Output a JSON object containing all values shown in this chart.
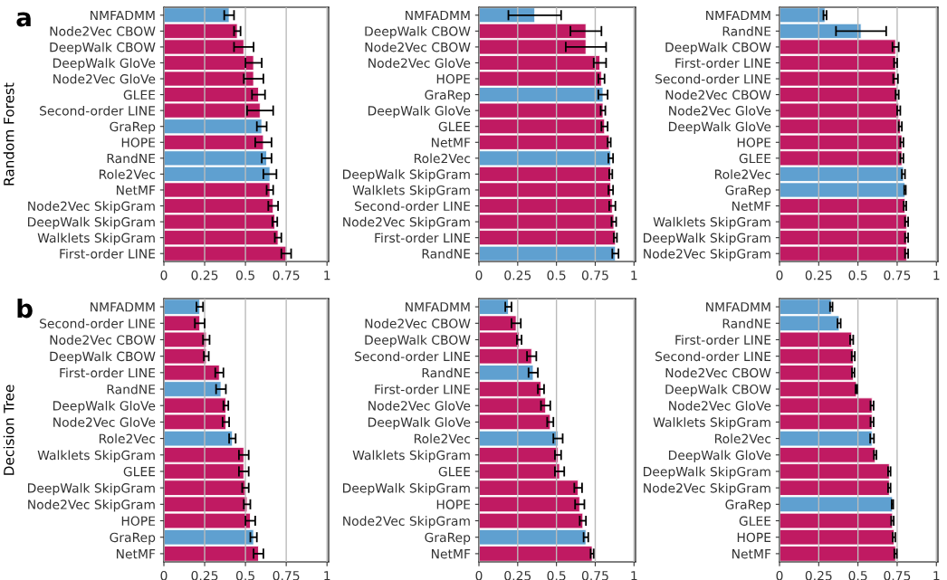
{
  "chart_data": [
    {
      "type": "bar",
      "orientation": "horizontal",
      "ylabel": "Random Forest",
      "annotations": [
        "a"
      ],
      "grid": "x",
      "xlim": [
        0,
        1.01
      ],
      "xticks": [
        0,
        0.25,
        0.5,
        0.75,
        1
      ],
      "categories": [
        "NMFADMM",
        "Node2Vec CBOW",
        "DeepWalk CBOW",
        "DeepWalk GloVe",
        "Node2Vec GloVe",
        "GLEE",
        "Second-order LINE",
        "GraRep",
        "HOPE",
        "RandNE",
        "Role2Vec",
        "NetMF",
        "Node2Vec SkipGram",
        "DeepWalk SkipGram",
        "Walklets SkipGram",
        "First-order LINE"
      ],
      "values": [
        0.4,
        0.45,
        0.49,
        0.55,
        0.55,
        0.58,
        0.59,
        0.6,
        0.61,
        0.63,
        0.65,
        0.65,
        0.67,
        0.68,
        0.7,
        0.75
      ],
      "errors": [
        0.03,
        0.02,
        0.06,
        0.05,
        0.06,
        0.04,
        0.08,
        0.03,
        0.05,
        0.03,
        0.04,
        0.02,
        0.03,
        0.015,
        0.02,
        0.03
      ],
      "colors": [
        "#5fa0d0",
        "#c01a62",
        "#c01a62",
        "#c01a62",
        "#c01a62",
        "#c01a62",
        "#c01a62",
        "#5fa0d0",
        "#c01a62",
        "#5fa0d0",
        "#5fa0d0",
        "#c01a62",
        "#c01a62",
        "#c01a62",
        "#c01a62",
        "#c01a62"
      ]
    },
    {
      "type": "bar",
      "orientation": "horizontal",
      "grid": "x",
      "xlim": [
        0,
        1.01
      ],
      "xticks": [
        0,
        0.25,
        0.5,
        0.75,
        1
      ],
      "categories": [
        "NMFADMM",
        "DeepWalk CBOW",
        "Node2Vec CBOW",
        "Node2Vec GloVe",
        "HOPE",
        "GraRep",
        "DeepWalk GloVe",
        "GLEE",
        "NetMF",
        "Role2Vec",
        "DeepWalk SkipGram",
        "Walklets SkipGram",
        "Second-order LINE",
        "Node2Vec SkipGram",
        "First-order LINE",
        "RandNE"
      ],
      "values": [
        0.36,
        0.69,
        0.69,
        0.78,
        0.79,
        0.8,
        0.8,
        0.81,
        0.84,
        0.85,
        0.85,
        0.85,
        0.86,
        0.87,
        0.88,
        0.88
      ],
      "errors": [
        0.17,
        0.1,
        0.13,
        0.04,
        0.02,
        0.03,
        0.015,
        0.02,
        0.01,
        0.015,
        0.01,
        0.015,
        0.02,
        0.015,
        0.01,
        0.02
      ],
      "colors": [
        "#5fa0d0",
        "#c01a62",
        "#c01a62",
        "#c01a62",
        "#c01a62",
        "#5fa0d0",
        "#c01a62",
        "#c01a62",
        "#c01a62",
        "#5fa0d0",
        "#c01a62",
        "#c01a62",
        "#c01a62",
        "#c01a62",
        "#c01a62",
        "#5fa0d0"
      ]
    },
    {
      "type": "bar",
      "orientation": "horizontal",
      "grid": "x",
      "xlim": [
        0,
        1.01
      ],
      "xticks": [
        0,
        0.25,
        0.5,
        0.75,
        1
      ],
      "categories": [
        "NMFADMM",
        "RandNE",
        "DeepWalk CBOW",
        "First-order LINE",
        "Second-order LINE",
        "Node2Vec CBOW",
        "Node2Vec GloVe",
        "DeepWalk GloVe",
        "HOPE",
        "GLEE",
        "Role2Vec",
        "GraRep",
        "NetMF",
        "Walklets SkipGram",
        "DeepWalk SkipGram",
        "Node2Vec SkipGram"
      ],
      "values": [
        0.29,
        0.52,
        0.74,
        0.74,
        0.74,
        0.75,
        0.76,
        0.77,
        0.78,
        0.78,
        0.79,
        0.8,
        0.8,
        0.81,
        0.81,
        0.81
      ],
      "errors": [
        0.01,
        0.16,
        0.02,
        0.01,
        0.015,
        0.01,
        0.01,
        0.01,
        0.01,
        0.01,
        0.01,
        0.005,
        0.008,
        0.01,
        0.01,
        0.01
      ],
      "colors": [
        "#5fa0d0",
        "#5fa0d0",
        "#c01a62",
        "#c01a62",
        "#c01a62",
        "#c01a62",
        "#c01a62",
        "#c01a62",
        "#c01a62",
        "#c01a62",
        "#5fa0d0",
        "#5fa0d0",
        "#c01a62",
        "#c01a62",
        "#c01a62",
        "#c01a62"
      ]
    },
    {
      "type": "bar",
      "orientation": "horizontal",
      "ylabel": "Decision Tree",
      "annotations": [
        "b"
      ],
      "grid": "x",
      "xlim": [
        0,
        1.01
      ],
      "xticks": [
        0,
        0.25,
        0.5,
        0.75,
        1
      ],
      "categories": [
        "NMFADMM",
        "Second-order LINE",
        "Node2Vec CBOW",
        "DeepWalk CBOW",
        "First-order LINE",
        "RandNE",
        "DeepWalk GloVe",
        "Node2Vec GloVe",
        "Role2Vec",
        "Walklets SkipGram",
        "GLEE",
        "DeepWalk SkipGram",
        "Node2Vec SkipGram",
        "HOPE",
        "GraRep",
        "NetMF"
      ],
      "values": [
        0.22,
        0.22,
        0.26,
        0.26,
        0.34,
        0.35,
        0.38,
        0.38,
        0.42,
        0.49,
        0.49,
        0.5,
        0.51,
        0.53,
        0.55,
        0.58
      ],
      "errors": [
        0.02,
        0.03,
        0.02,
        0.015,
        0.025,
        0.03,
        0.015,
        0.02,
        0.02,
        0.03,
        0.03,
        0.02,
        0.02,
        0.03,
        0.02,
        0.03
      ],
      "colors": [
        "#5fa0d0",
        "#c01a62",
        "#c01a62",
        "#c01a62",
        "#c01a62",
        "#5fa0d0",
        "#c01a62",
        "#c01a62",
        "#5fa0d0",
        "#c01a62",
        "#c01a62",
        "#c01a62",
        "#c01a62",
        "#c01a62",
        "#5fa0d0",
        "#c01a62"
      ]
    },
    {
      "type": "bar",
      "orientation": "horizontal",
      "grid": "x",
      "xlim": [
        0,
        1.01
      ],
      "xticks": [
        0,
        0.25,
        0.5,
        0.75,
        1
      ],
      "categories": [
        "NMFADMM",
        "Node2Vec CBOW",
        "DeepWalk CBOW",
        "Second-order LINE",
        "RandNE",
        "First-order LINE",
        "Node2Vec GloVe",
        "DeepWalk GloVe",
        "Role2Vec",
        "Walklets SkipGram",
        "GLEE",
        "DeepWalk SkipGram",
        "HOPE",
        "Node2Vec SkipGram",
        "GraRep",
        "NetMF"
      ],
      "values": [
        0.19,
        0.24,
        0.26,
        0.34,
        0.35,
        0.4,
        0.43,
        0.46,
        0.51,
        0.51,
        0.52,
        0.64,
        0.65,
        0.67,
        0.69,
        0.73
      ],
      "errors": [
        0.02,
        0.03,
        0.015,
        0.03,
        0.03,
        0.02,
        0.03,
        0.02,
        0.03,
        0.02,
        0.03,
        0.025,
        0.03,
        0.02,
        0.015,
        0.01
      ],
      "colors": [
        "#5fa0d0",
        "#c01a62",
        "#c01a62",
        "#c01a62",
        "#5fa0d0",
        "#c01a62",
        "#c01a62",
        "#c01a62",
        "#5fa0d0",
        "#c01a62",
        "#c01a62",
        "#c01a62",
        "#c01a62",
        "#c01a62",
        "#5fa0d0",
        "#c01a62"
      ]
    },
    {
      "type": "bar",
      "orientation": "horizontal",
      "grid": "x",
      "xlim": [
        0,
        1.01
      ],
      "xticks": [
        0,
        0.25,
        0.5,
        0.75,
        1
      ],
      "categories": [
        "NMFADMM",
        "RandNE",
        "First-order LINE",
        "Second-order LINE",
        "Node2Vec CBOW",
        "DeepWalk CBOW",
        "Node2Vec GloVe",
        "Walklets SkipGram",
        "Role2Vec",
        "DeepWalk GloVe",
        "DeepWalk SkipGram",
        "Node2Vec SkipGram",
        "GraRep",
        "GLEE",
        "HOPE",
        "NetMF"
      ],
      "values": [
        0.33,
        0.38,
        0.46,
        0.47,
        0.47,
        0.49,
        0.59,
        0.59,
        0.59,
        0.61,
        0.7,
        0.7,
        0.72,
        0.72,
        0.73,
        0.74
      ],
      "errors": [
        0.008,
        0.01,
        0.01,
        0.01,
        0.008,
        0.005,
        0.01,
        0.01,
        0.012,
        0.008,
        0.008,
        0.008,
        0.005,
        0.008,
        0.008,
        0.008
      ],
      "colors": [
        "#5fa0d0",
        "#5fa0d0",
        "#c01a62",
        "#c01a62",
        "#c01a62",
        "#c01a62",
        "#c01a62",
        "#c01a62",
        "#5fa0d0",
        "#c01a62",
        "#c01a62",
        "#c01a62",
        "#5fa0d0",
        "#c01a62",
        "#c01a62",
        "#c01a62"
      ]
    }
  ]
}
